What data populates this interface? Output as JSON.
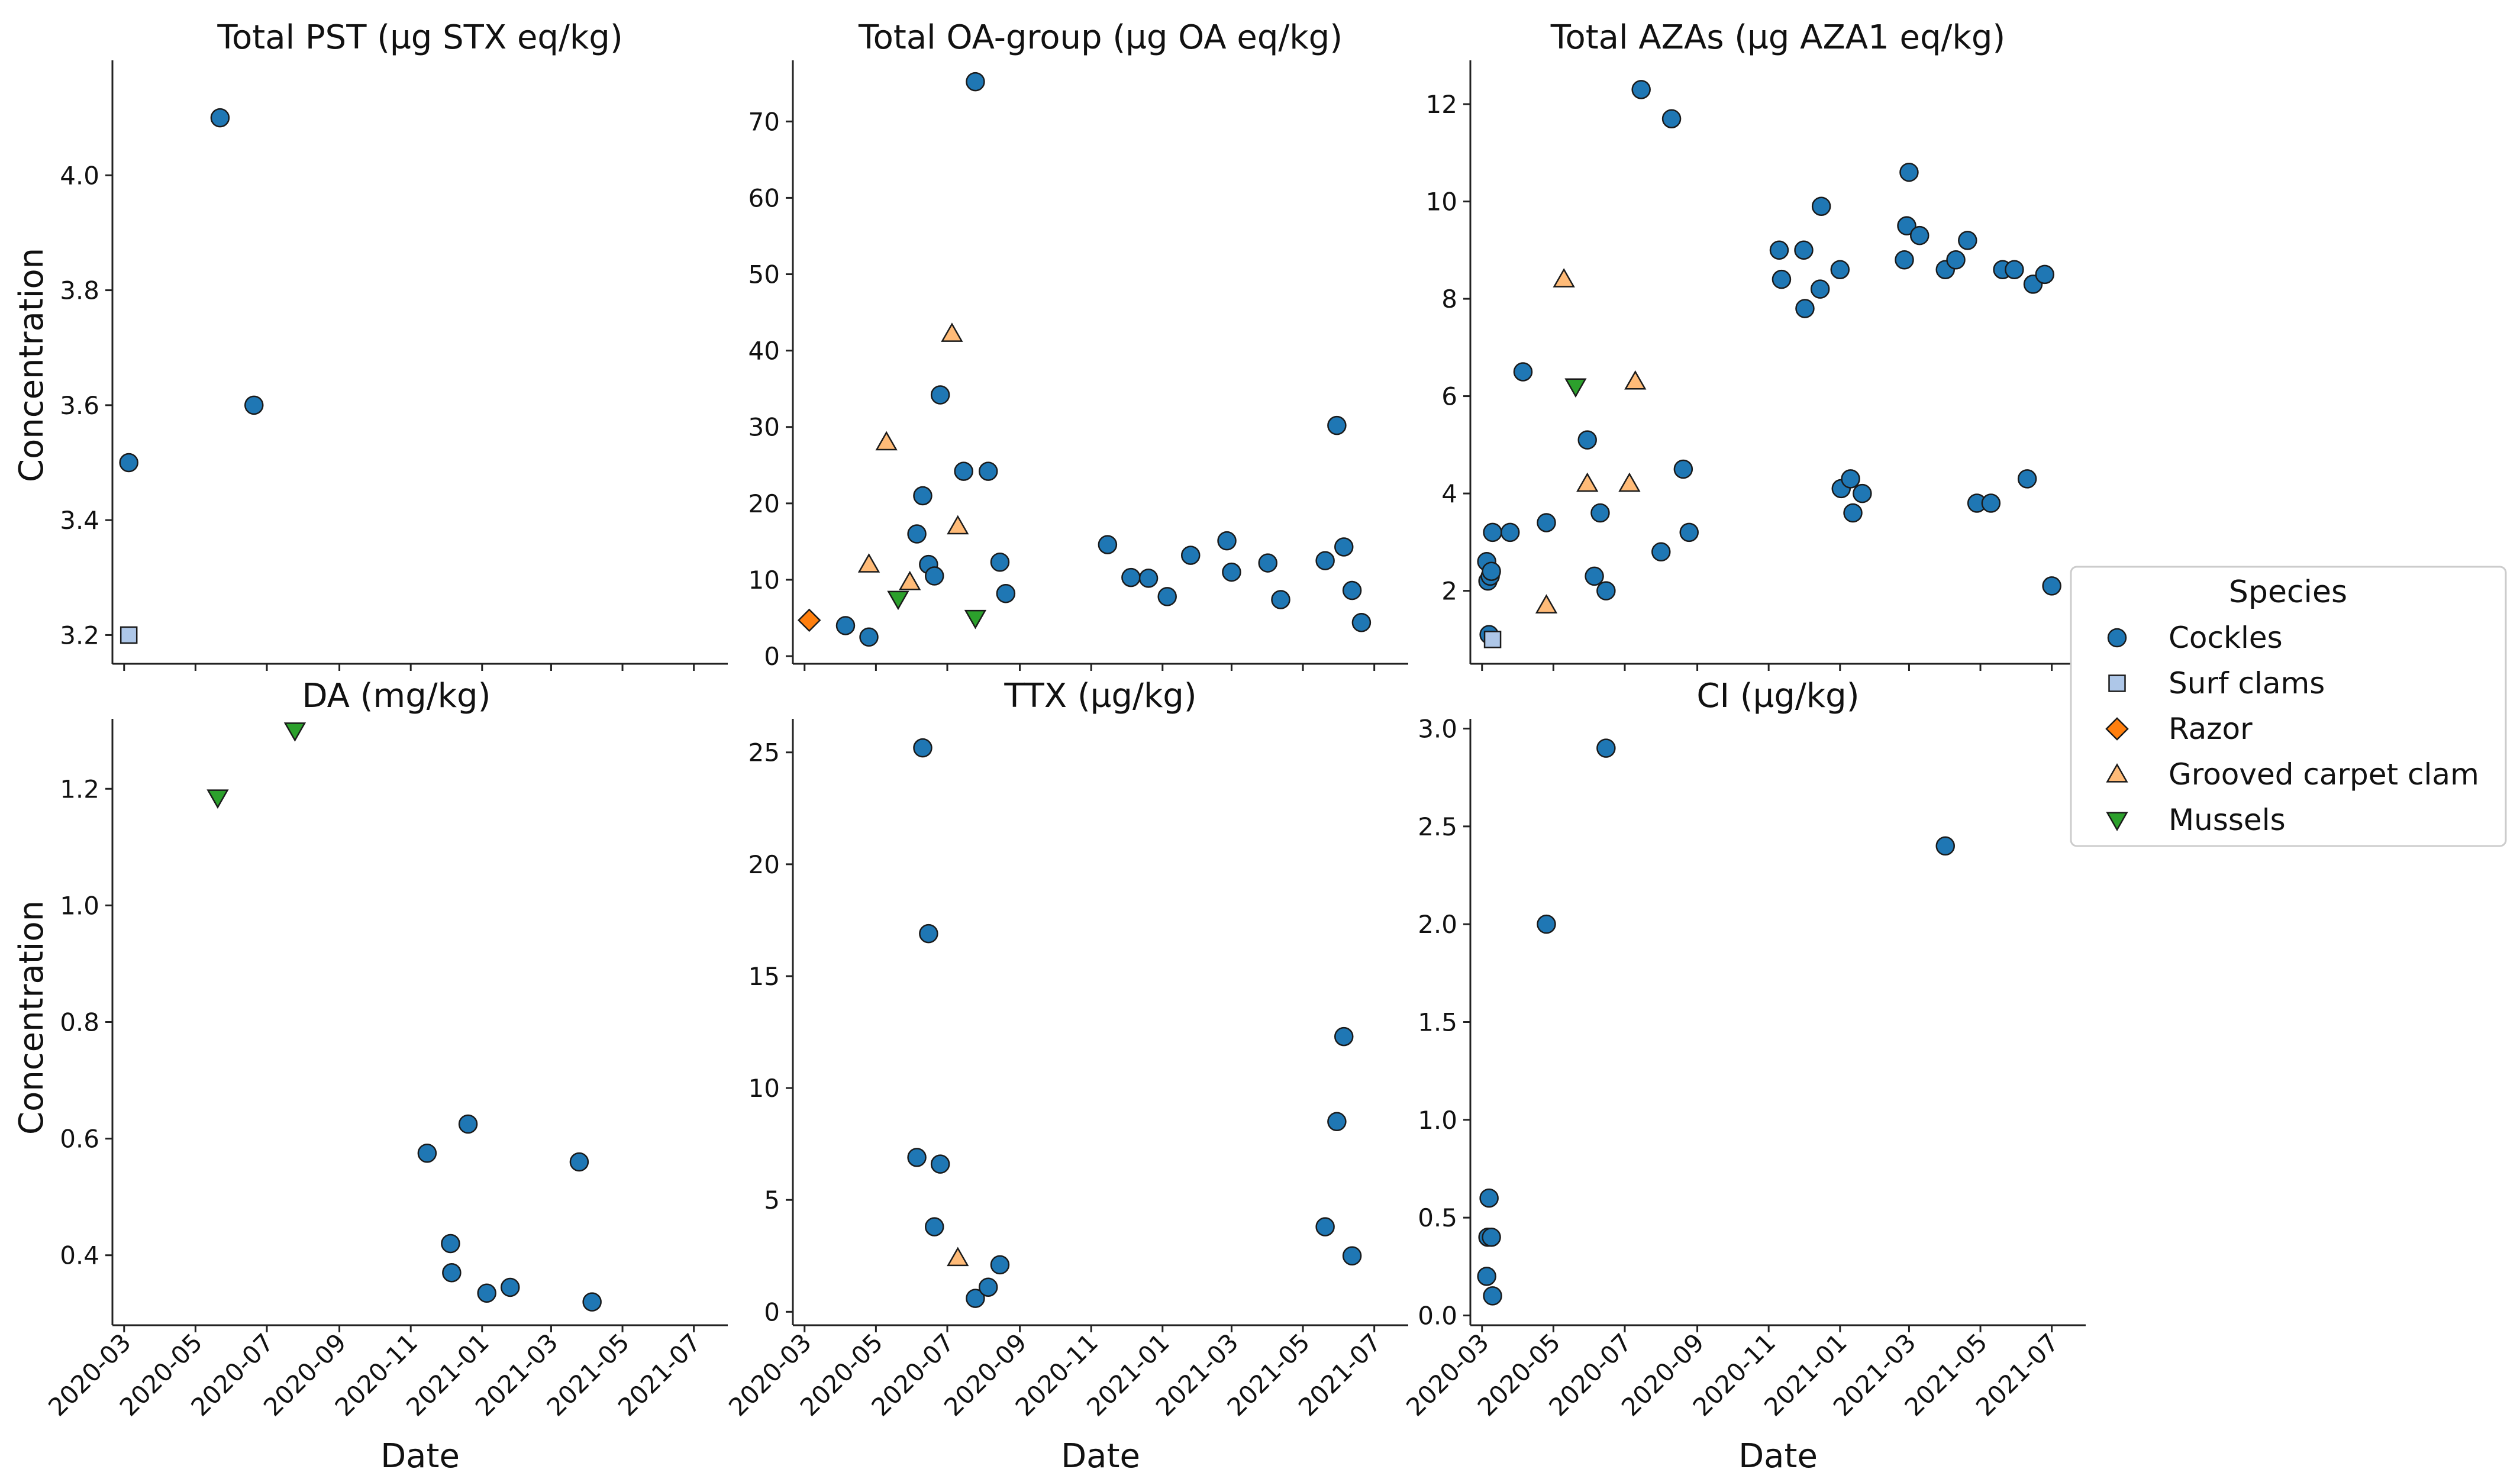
{
  "figure": {
    "species_colors": {
      "Cockles": "#1f77b4",
      "Surf clams": "#aec7e8",
      "Razor": "#ff7f0e",
      "Grooved carpet clam": "#ffbb78",
      "Mussels": "#2ca02c"
    },
    "legend": {
      "title": "Species",
      "entries": [
        {
          "name": "Cockles",
          "marker": "circle"
        },
        {
          "name": "Surf clams",
          "marker": "square"
        },
        {
          "name": "Razor",
          "marker": "diamond"
        },
        {
          "name": "Grooved carpet clam",
          "marker": "triangle-up"
        },
        {
          "name": "Mussels",
          "marker": "triangle-down"
        }
      ]
    }
  },
  "chart_data": [
    {
      "type": "scatter",
      "title": "Total PST (µg STX eq/kg)",
      "xlabel": "",
      "ylabel": "Concentration",
      "xlim": [
        "2020-02-20",
        "2021-07-30"
      ],
      "ylim": [
        3.15,
        4.2
      ],
      "yticks": [
        "3.2",
        "3.4",
        "3.6",
        "3.8",
        "4.0"
      ],
      "xticks": [],
      "series": [
        {
          "name": "Cockles",
          "points": [
            [
              "2020-03-05",
              3.5
            ],
            [
              "2020-05-22",
              4.1
            ],
            [
              "2020-06-20",
              3.6
            ]
          ]
        },
        {
          "name": "Surf clams",
          "points": [
            [
              "2020-03-05",
              3.2
            ]
          ]
        }
      ]
    },
    {
      "type": "scatter",
      "title": "Total OA-group (µg OA eq/kg)",
      "xlabel": "",
      "ylabel": "",
      "xlim": [
        "2020-02-20",
        "2021-07-30"
      ],
      "ylim": [
        -1,
        78
      ],
      "yticks": [
        "0",
        "10",
        "20",
        "30",
        "40",
        "50",
        "60",
        "70"
      ],
      "xticks": [],
      "series": [
        {
          "name": "Cockles",
          "points": [
            [
              "2020-04-05",
              4
            ],
            [
              "2020-04-25",
              2.5
            ],
            [
              "2020-06-05",
              16
            ],
            [
              "2020-06-10",
              21
            ],
            [
              "2020-06-15",
              12
            ],
            [
              "2020-06-20",
              10.5
            ],
            [
              "2020-06-25",
              34.2
            ],
            [
              "2020-07-15",
              24.2
            ],
            [
              "2020-07-25",
              75.2
            ],
            [
              "2020-08-05",
              24.2
            ],
            [
              "2020-08-15",
              12.3
            ],
            [
              "2020-08-20",
              8.2
            ],
            [
              "2020-11-15",
              14.6
            ],
            [
              "2020-12-05",
              10.3
            ],
            [
              "2020-12-20",
              10.2
            ],
            [
              "2021-01-05",
              7.8
            ],
            [
              "2021-01-25",
              13.2
            ],
            [
              "2021-02-25",
              15.1
            ],
            [
              "2021-03-01",
              11
            ],
            [
              "2021-04-01",
              12.2
            ],
            [
              "2021-04-12",
              7.4
            ],
            [
              "2021-05-20",
              12.5
            ],
            [
              "2021-05-30",
              30.2
            ],
            [
              "2021-06-05",
              14.3
            ],
            [
              "2021-06-12",
              8.6
            ],
            [
              "2021-06-20",
              4.4
            ]
          ]
        },
        {
          "name": "Razor",
          "points": [
            [
              "2020-03-05",
              4.7
            ]
          ]
        },
        {
          "name": "Grooved carpet clam",
          "points": [
            [
              "2020-04-25",
              12
            ],
            [
              "2020-05-10",
              28
            ],
            [
              "2020-05-30",
              9.7
            ],
            [
              "2020-07-05",
              42.2
            ],
            [
              "2020-07-10",
              17
            ]
          ]
        },
        {
          "name": "Mussels",
          "points": [
            [
              "2020-05-20",
              7.5
            ],
            [
              "2020-07-25",
              5
            ]
          ]
        }
      ]
    },
    {
      "type": "scatter",
      "title": "Total AZAs (µg AZA1 eq/kg)",
      "xlabel": "",
      "ylabel": "",
      "xlim": [
        "2020-02-20",
        "2021-07-30"
      ],
      "ylim": [
        0.5,
        12.9
      ],
      "yticks": [
        "2",
        "4",
        "6",
        "8",
        "10",
        "12"
      ],
      "xticks": [],
      "series": [
        {
          "name": "Cockles",
          "points": [
            [
              "2020-03-05",
              2.6
            ],
            [
              "2020-03-06",
              2.2
            ],
            [
              "2020-03-07",
              1.1
            ],
            [
              "2020-03-08",
              2.3
            ],
            [
              "2020-03-09",
              2.4
            ],
            [
              "2020-03-10",
              3.2
            ],
            [
              "2020-03-25",
              3.2
            ],
            [
              "2020-04-05",
              6.5
            ],
            [
              "2020-04-25",
              3.4
            ],
            [
              "2020-05-30",
              5.1
            ],
            [
              "2020-06-05",
              2.3
            ],
            [
              "2020-06-10",
              3.6
            ],
            [
              "2020-06-15",
              2
            ],
            [
              "2020-07-15",
              12.3
            ],
            [
              "2020-08-01",
              2.8
            ],
            [
              "2020-08-10",
              11.7
            ],
            [
              "2020-08-20",
              4.5
            ],
            [
              "2020-08-25",
              3.2
            ],
            [
              "2020-11-10",
              9
            ],
            [
              "2020-11-12",
              8.4
            ],
            [
              "2020-12-01",
              9
            ],
            [
              "2020-12-02",
              7.8
            ],
            [
              "2020-12-15",
              8.2
            ],
            [
              "2020-12-16",
              9.9
            ],
            [
              "2021-01-01",
              8.6
            ],
            [
              "2021-01-02",
              4.1
            ],
            [
              "2021-01-10",
              4.3
            ],
            [
              "2021-01-12",
              3.6
            ],
            [
              "2021-01-20",
              4
            ],
            [
              "2021-02-25",
              8.8
            ],
            [
              "2021-02-27",
              9.5
            ],
            [
              "2021-03-01",
              10.6
            ],
            [
              "2021-03-10",
              9.3
            ],
            [
              "2021-04-01",
              8.6
            ],
            [
              "2021-04-10",
              8.8
            ],
            [
              "2021-04-20",
              9.2
            ],
            [
              "2021-04-28",
              3.8
            ],
            [
              "2021-05-10",
              3.8
            ],
            [
              "2021-05-20",
              8.6
            ],
            [
              "2021-05-30",
              8.6
            ],
            [
              "2021-06-10",
              4.3
            ],
            [
              "2021-06-15",
              8.3
            ],
            [
              "2021-06-25",
              8.5
            ],
            [
              "2021-07-01",
              2.1
            ]
          ]
        },
        {
          "name": "Surf clams",
          "points": [
            [
              "2020-03-10",
              1
            ]
          ]
        },
        {
          "name": "Grooved carpet clam",
          "points": [
            [
              "2020-04-25",
              1.7
            ],
            [
              "2020-05-10",
              8.4
            ],
            [
              "2020-05-30",
              4.2
            ],
            [
              "2020-07-05",
              4.2
            ],
            [
              "2020-07-10",
              6.3
            ]
          ]
        },
        {
          "name": "Mussels",
          "points": [
            [
              "2020-05-20",
              6.2
            ]
          ]
        }
      ]
    },
    {
      "type": "scatter",
      "title": "DA (mg/kg)",
      "xlabel": "Date",
      "ylabel": "Concentration",
      "xlim": [
        "2020-02-20",
        "2021-07-30"
      ],
      "ylim": [
        0.28,
        1.32
      ],
      "yticks": [
        "0.4",
        "0.6",
        "0.8",
        "1.0",
        "1.2"
      ],
      "xticks": [
        "2020-03",
        "2020-05",
        "2020-07",
        "2020-09",
        "2020-11",
        "2021-01",
        "2021-03",
        "2021-05",
        "2021-07"
      ],
      "series": [
        {
          "name": "Cockles",
          "points": [
            [
              "2020-11-15",
              0.575
            ],
            [
              "2020-12-05",
              0.42
            ],
            [
              "2020-12-06",
              0.37
            ],
            [
              "2020-12-20",
              0.625
            ],
            [
              "2021-01-05",
              0.335
            ],
            [
              "2021-01-25",
              0.345
            ],
            [
              "2021-03-25",
              0.56
            ],
            [
              "2021-04-05",
              0.32
            ]
          ]
        },
        {
          "name": "Mussels",
          "points": [
            [
              "2020-05-20",
              1.185
            ],
            [
              "2020-07-25",
              1.3
            ]
          ]
        }
      ]
    },
    {
      "type": "scatter",
      "title": "TTX (µg/kg)",
      "xlabel": "Date",
      "ylabel": "",
      "xlim": [
        "2020-02-20",
        "2021-07-30"
      ],
      "ylim": [
        -0.6,
        26.5
      ],
      "yticks": [
        "0",
        "5",
        "10",
        "15",
        "20",
        "25"
      ],
      "xticks": [
        "2020-03",
        "2020-05",
        "2020-07",
        "2020-09",
        "2020-11",
        "2021-01",
        "2021-03",
        "2021-05",
        "2021-07"
      ],
      "series": [
        {
          "name": "Cockles",
          "points": [
            [
              "2020-06-05",
              6.9
            ],
            [
              "2020-06-10",
              25.2
            ],
            [
              "2020-06-15",
              16.9
            ],
            [
              "2020-06-20",
              3.8
            ],
            [
              "2020-06-25",
              6.6
            ],
            [
              "2020-07-25",
              0.6
            ],
            [
              "2020-08-05",
              1.1
            ],
            [
              "2020-08-15",
              2.1
            ],
            [
              "2021-05-20",
              3.8
            ],
            [
              "2021-05-30",
              8.5
            ],
            [
              "2021-06-05",
              12.3
            ],
            [
              "2021-06-12",
              2.5
            ]
          ]
        },
        {
          "name": "Grooved carpet clam",
          "points": [
            [
              "2020-07-10",
              2.4
            ]
          ]
        }
      ]
    },
    {
      "type": "scatter",
      "title": "CI (µg/kg)",
      "xlabel": "Date",
      "ylabel": "",
      "xlim": [
        "2020-02-20",
        "2021-07-30"
      ],
      "ylim": [
        -0.05,
        3.05
      ],
      "yticks": [
        "0.0",
        "0.5",
        "1.0",
        "1.5",
        "2.0",
        "2.5",
        "3.0"
      ],
      "xticks": [
        "2020-03",
        "2020-05",
        "2020-07",
        "2020-09",
        "2020-11",
        "2021-01",
        "2021-03",
        "2021-05",
        "2021-07"
      ],
      "series": [
        {
          "name": "Cockles",
          "points": [
            [
              "2020-03-05",
              0.2
            ],
            [
              "2020-03-06",
              0.4
            ],
            [
              "2020-03-07",
              0.6
            ],
            [
              "2020-03-09",
              0.4
            ],
            [
              "2020-03-10",
              0.1
            ],
            [
              "2020-04-25",
              2.0
            ],
            [
              "2020-06-15",
              2.9
            ],
            [
              "2021-04-01",
              2.4
            ]
          ]
        }
      ]
    }
  ]
}
